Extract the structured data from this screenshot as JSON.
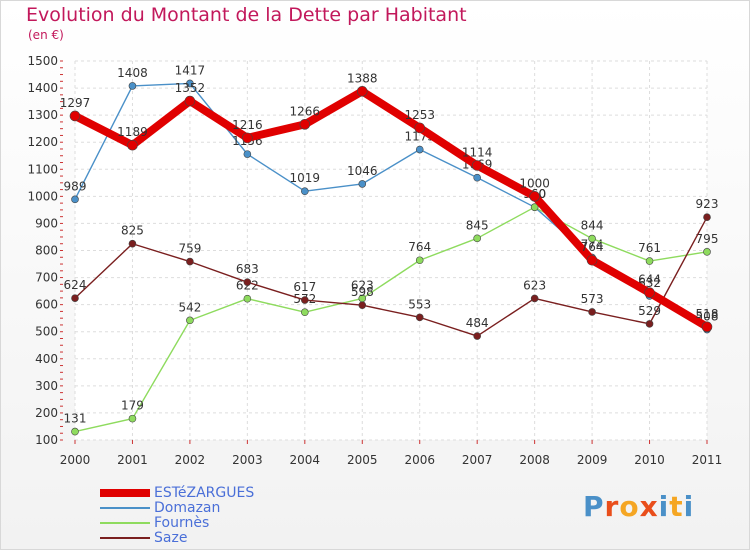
{
  "chart_data": {
    "type": "line",
    "title": "Evolution du Montant de la Dette par Habitant",
    "subtitle": "(en €)",
    "ylim": [
      100,
      1500
    ],
    "yticks": [
      100,
      200,
      300,
      400,
      500,
      600,
      700,
      800,
      900,
      1000,
      1100,
      1200,
      1300,
      1400,
      1500
    ],
    "categories": [
      "2000",
      "2001",
      "2002",
      "2003",
      "2004",
      "2005",
      "2006",
      "2007",
      "2008",
      "2009",
      "2010",
      "2011"
    ],
    "grid": true,
    "legend_position": "bottom-left",
    "series": [
      {
        "name": "Domazan",
        "color": "#4a90c8",
        "values": [
          989,
          1408,
          1417,
          1156,
          1019,
          1046,
          1173,
          1069,
          960,
          774,
          632,
          508
        ]
      },
      {
        "name": "Fournès",
        "color": "#8edb5e",
        "values": [
          131,
          179,
          542,
          622,
          572,
          623,
          764,
          845,
          960,
          844,
          761,
          795
        ]
      },
      {
        "name": "Saze",
        "color": "#7a1f1f",
        "values": [
          624,
          825,
          759,
          683,
          617,
          598,
          553,
          484,
          623,
          573,
          529,
          923
        ]
      },
      {
        "name": "ESTéZARGUES",
        "color": "#e00000",
        "values": [
          1297,
          1189,
          1352,
          1216,
          1266,
          1388,
          1253,
          1114,
          1000,
          764,
          644,
          518
        ]
      }
    ]
  },
  "logo": {
    "text": "Proxiti"
  }
}
